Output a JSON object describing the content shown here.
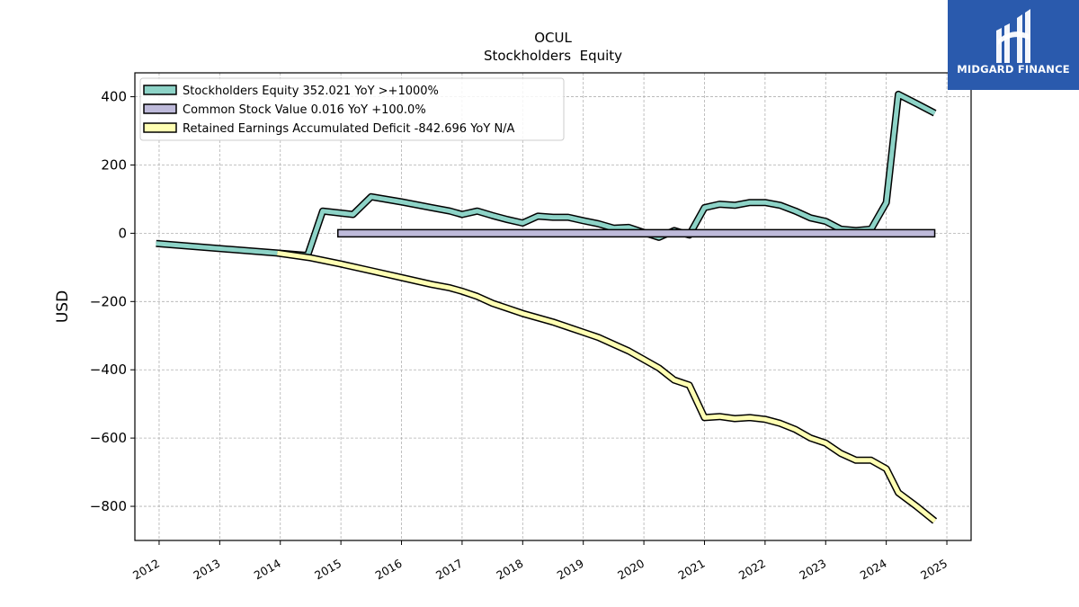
{
  "chart_data": {
    "type": "line",
    "title": "OCUL",
    "subtitle": "Stockholders  Equity",
    "ylabel": "USD",
    "xlabel": "",
    "xlim": [
      2011.6,
      2025.4
    ],
    "ylim": [
      -900,
      470
    ],
    "grid": true,
    "legend_position": "top-left",
    "x_ticks": [
      "2012",
      "2013",
      "2014",
      "2015",
      "2016",
      "2017",
      "2018",
      "2019",
      "2020",
      "2021",
      "2022",
      "2023",
      "2024",
      "2025"
    ],
    "y_ticks": [
      400,
      200,
      0,
      -200,
      -400,
      -600,
      -800
    ],
    "y_tick_labels": [
      "400",
      "200",
      "0",
      "−200",
      "−400",
      "−600",
      "−800"
    ],
    "series": [
      {
        "name": "Stockholders Equity  352.021 YoY >+1000%",
        "color": "#8dd3c7",
        "points": [
          [
            2011.95,
            -30
          ],
          [
            2013.95,
            -58
          ],
          [
            2014.45,
            -65
          ],
          [
            2014.7,
            65
          ],
          [
            2015.2,
            55
          ],
          [
            2015.5,
            107
          ],
          [
            2016.0,
            92
          ],
          [
            2016.5,
            75
          ],
          [
            2016.8,
            65
          ],
          [
            2017.0,
            55
          ],
          [
            2017.25,
            65
          ],
          [
            2017.5,
            52
          ],
          [
            2017.75,
            40
          ],
          [
            2018.0,
            30
          ],
          [
            2018.25,
            50
          ],
          [
            2018.5,
            47
          ],
          [
            2018.75,
            47
          ],
          [
            2019.0,
            37
          ],
          [
            2019.25,
            28
          ],
          [
            2019.5,
            15
          ],
          [
            2019.75,
            17
          ],
          [
            2020.0,
            2
          ],
          [
            2020.25,
            -12
          ],
          [
            2020.5,
            8
          ],
          [
            2020.75,
            -5
          ],
          [
            2021.0,
            75
          ],
          [
            2021.25,
            85
          ],
          [
            2021.5,
            82
          ],
          [
            2021.75,
            90
          ],
          [
            2022.0,
            90
          ],
          [
            2022.25,
            82
          ],
          [
            2022.5,
            65
          ],
          [
            2022.75,
            45
          ],
          [
            2023.0,
            35
          ],
          [
            2023.25,
            12
          ],
          [
            2023.5,
            8
          ],
          [
            2023.75,
            12
          ],
          [
            2024.0,
            90
          ],
          [
            2024.2,
            407
          ],
          [
            2024.5,
            380
          ],
          [
            2024.8,
            352
          ]
        ]
      },
      {
        "name": "Common Stock Value  0.016 YoY +100.0%",
        "color": "#bebada",
        "points": [
          [
            2014.95,
            0
          ],
          [
            2024.8,
            0
          ]
        ]
      },
      {
        "name": "Retained Earnings Accumulated Deficit  -842.696 YoY N/A",
        "color": "#ffffb3",
        "points": [
          [
            2013.95,
            -58
          ],
          [
            2014.5,
            -72
          ],
          [
            2015.0,
            -90
          ],
          [
            2015.5,
            -110
          ],
          [
            2016.0,
            -130
          ],
          [
            2016.5,
            -150
          ],
          [
            2016.8,
            -160
          ],
          [
            2017.0,
            -170
          ],
          [
            2017.25,
            -185
          ],
          [
            2017.5,
            -205
          ],
          [
            2017.75,
            -220
          ],
          [
            2018.0,
            -235
          ],
          [
            2018.5,
            -260
          ],
          [
            2018.75,
            -275
          ],
          [
            2019.0,
            -290
          ],
          [
            2019.25,
            -305
          ],
          [
            2019.5,
            -325
          ],
          [
            2019.75,
            -345
          ],
          [
            2020.0,
            -370
          ],
          [
            2020.25,
            -395
          ],
          [
            2020.5,
            -430
          ],
          [
            2020.75,
            -445
          ],
          [
            2021.0,
            -540
          ],
          [
            2021.25,
            -537
          ],
          [
            2021.5,
            -543
          ],
          [
            2021.75,
            -540
          ],
          [
            2022.0,
            -545
          ],
          [
            2022.25,
            -557
          ],
          [
            2022.5,
            -575
          ],
          [
            2022.75,
            -600
          ],
          [
            2023.0,
            -615
          ],
          [
            2023.25,
            -645
          ],
          [
            2023.5,
            -665
          ],
          [
            2023.75,
            -665
          ],
          [
            2024.0,
            -690
          ],
          [
            2024.2,
            -760
          ],
          [
            2024.5,
            -800
          ],
          [
            2024.8,
            -843
          ]
        ]
      }
    ]
  },
  "logo": {
    "text": "MIDGARD FINANCE"
  }
}
